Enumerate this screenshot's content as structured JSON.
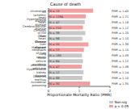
{
  "chart_data": {
    "type": "bar",
    "title": "Cause of death",
    "orientation": "horizontal",
    "categories": [
      "Alcoholism",
      "All ischemic heart disease",
      "Hypertensive heart disease",
      "Cerebrovascular disease",
      "Cirrhosis of the liver",
      "Other heart disease",
      "Chronic liver disease",
      "Malignant neoplasm of liver",
      "Lung cancer",
      "Motor vehicle accidents",
      "Intentional self-harm",
      "Hypertensive kidney disease",
      "Diabetes mellitus",
      "Accidental poisoning"
    ],
    "values": [
      1.45,
      1.21,
      1.18,
      1.12,
      1.2,
      1.1,
      1.3,
      1.15,
      1.09,
      1.12,
      1.08,
      1.14,
      1.1,
      1.35
    ],
    "colors": [
      "#f4a0a0",
      "#f4a0a0",
      "#c8c8c8",
      "#f4a0a0",
      "#c8c8c8",
      "#c8c8c8",
      "#f4a0a0",
      "#f4a0a0",
      "#c8c8c8",
      "#c8c8c8",
      "#f4a0a0",
      "#c8c8c8",
      "#c8c8c8",
      "#f4a0a0"
    ],
    "value_labels": [
      "PMR = 1.45",
      "PMR = 1.21",
      "PMR = 1.18",
      "PMR = 1.12",
      "PMR = 1.20",
      "PMR = 1.10",
      "PMR = 1.30",
      "PMR = 1.15",
      "PMR = 1.09",
      "PMR = 1.12",
      "PMR = 1.08",
      "PMR = 1.14",
      "PMR = 1.10",
      "PMR = 1.35"
    ],
    "count_labels": [
      "N = 15",
      "N = 1284",
      "N = 42",
      "N = 210",
      "N = 38",
      "N = 96",
      "N = 55",
      "N = 22",
      "N = 180",
      "N = 64",
      "N = 47",
      "N = 12",
      "N = 88",
      "N = 30"
    ],
    "data_labels": true,
    "x_label": "Proportionate Mortality Ratio (PMR)",
    "xlim": [
      0,
      2
    ],
    "xticks": [
      0,
      1,
      2
    ],
    "legend": "lower right",
    "legend_items": [
      {
        "name": "Non-sig",
        "color": "#c8c8c8"
      },
      {
        "name": "p < 0.05",
        "color": "#f4a0a0"
      }
    ]
  }
}
